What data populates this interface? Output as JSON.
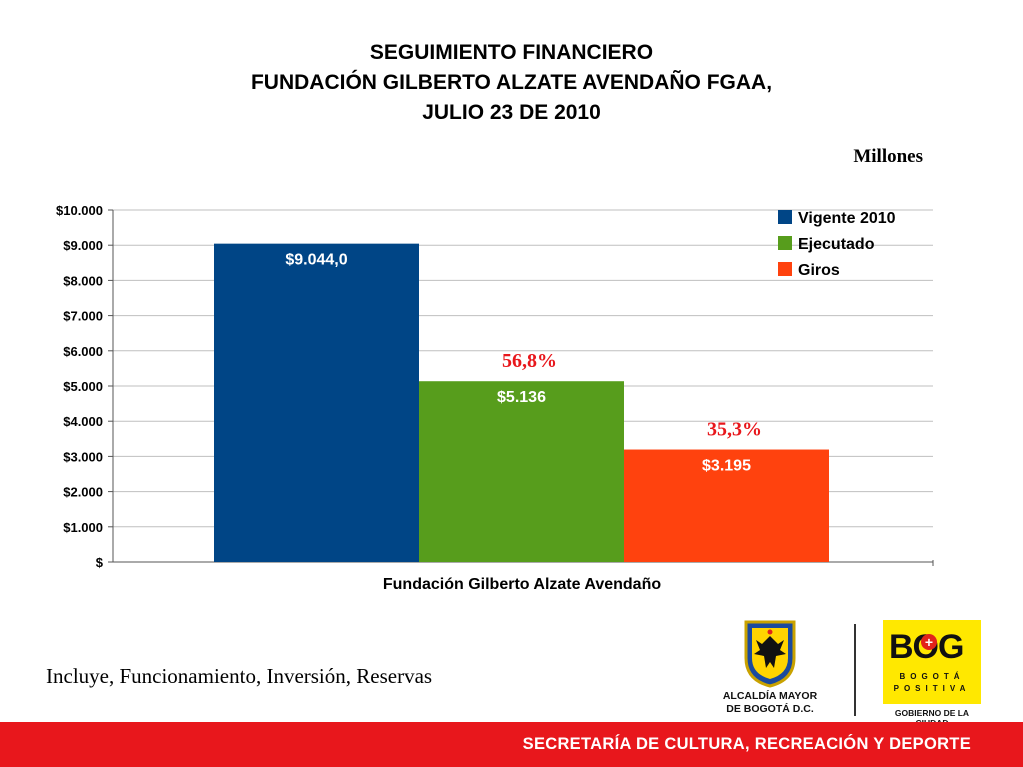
{
  "header": {
    "title_lines": [
      "SEGUIMIENTO FINANCIERO",
      "FUNDACIÓN GILBERTO ALZATE AVENDAÑO FGAA,",
      "JULIO 23 DE 2010"
    ],
    "unit_label": "Millones"
  },
  "chart_data": {
    "type": "bar",
    "categories": [
      "Fundación Gilberto Alzate Avendaño"
    ],
    "xlabel": "Fundación Gilberto Alzate Avendaño",
    "ylabel": "",
    "ylim": [
      0,
      10000
    ],
    "yticks": [
      "$",
      "$1.000",
      "$2.000",
      "$3.000",
      "$4.000",
      "$5.000",
      "$6.000",
      "$7.000",
      "$8.000",
      "$9.000",
      "$10.000"
    ],
    "grid": true,
    "legend_position": "top-right",
    "series": [
      {
        "name": "Vigente 2010",
        "values": [
          9044.0
        ],
        "label": "$9.044,0",
        "color": "#004586"
      },
      {
        "name": "Ejecutado",
        "values": [
          5136
        ],
        "label": "$5.136",
        "color": "#579d1c",
        "annotation": "56,8%"
      },
      {
        "name": "Giros",
        "values": [
          3195
        ],
        "label": "$3.195",
        "color": "#ff420e",
        "annotation": "35,3%"
      }
    ],
    "annotation_color": "#e8171c"
  },
  "footnote": "Incluye, Funcionamiento, Inversión, Reservas",
  "logos": {
    "alcaldia": [
      "ALCALDÍA MAYOR",
      "DE BOGOTÁ D.C."
    ],
    "bog_big": "BOG",
    "bog_sub1": "BOGOTÁ",
    "bog_sub2": "POSITIVA",
    "bog_caption": "GOBIERNO DE LA CIUDAD"
  },
  "footer": {
    "text": "SECRETARÍA DE CULTURA, RECREACIÓN Y DEPORTE",
    "color": "#e8171c"
  }
}
